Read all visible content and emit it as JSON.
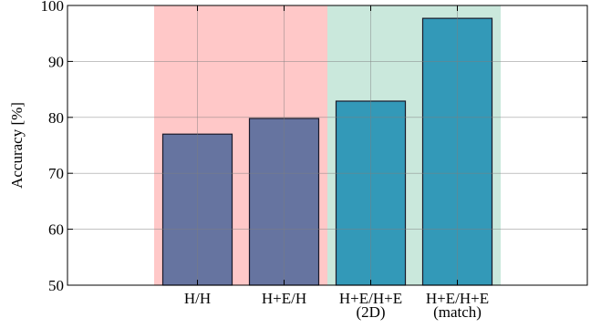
{
  "chart_data": {
    "type": "bar",
    "ylabel": "Accuracy [%]",
    "ylim": [
      50,
      100
    ],
    "yticks": [
      "50",
      "60",
      "70",
      "80",
      "90",
      "100"
    ],
    "categories": [
      [
        "H/H"
      ],
      [
        "H+E/H"
      ],
      [
        "H+E/H+E",
        "(2D)"
      ],
      [
        "H+E/H+E",
        "(match)"
      ]
    ],
    "values": [
      77,
      79.8,
      82.9,
      97.7
    ],
    "bar_colors": [
      "#6674a0",
      "#6674a0",
      "#3399b8",
      "#3399b8"
    ],
    "background_bands": [
      {
        "from_category": 0,
        "to_category": 1,
        "color": "#ffc8c8"
      },
      {
        "from_category": 2,
        "to_category": 3,
        "color": "#cae8dc"
      }
    ],
    "grid": true,
    "legend": "none"
  }
}
